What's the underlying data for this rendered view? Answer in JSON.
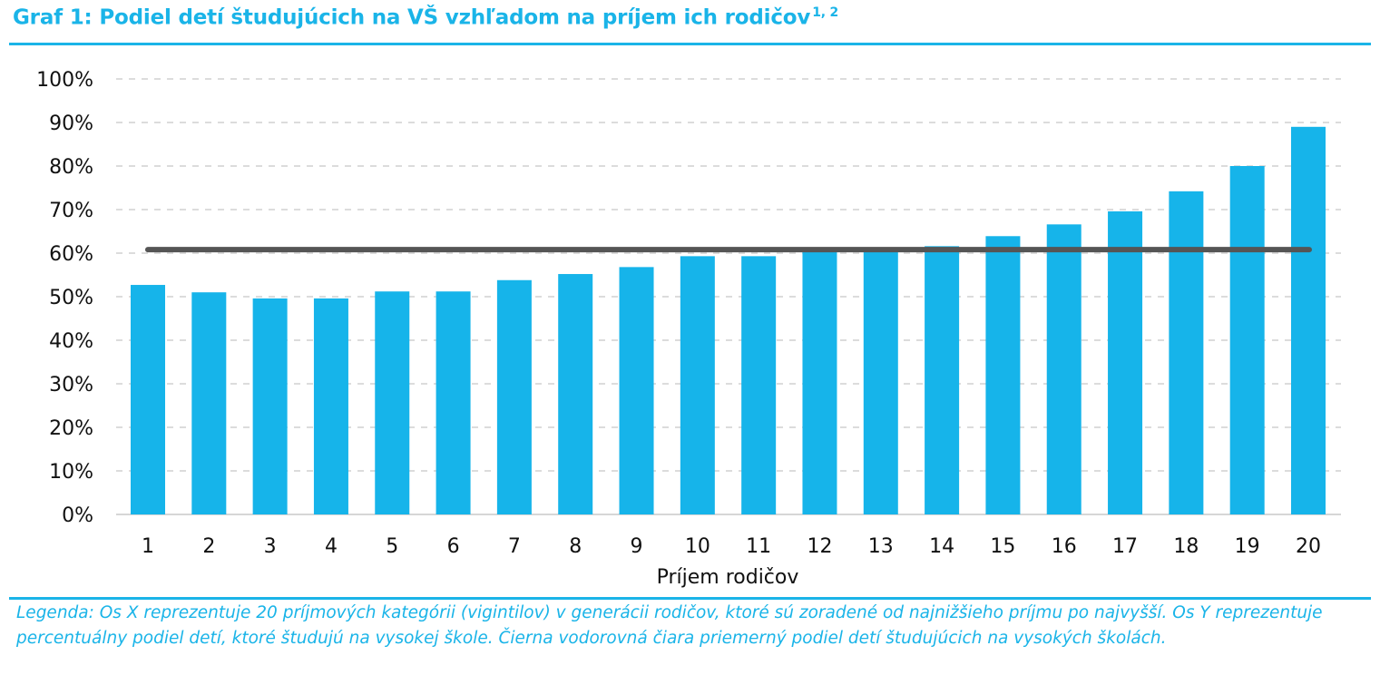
{
  "header": {
    "title": "Graf 1: Podiel detí študujúcich na VŠ vzhľadom na príjem ich rodičov",
    "footnote_marks": "1, 2"
  },
  "colors": {
    "accent": "#1ab4e8",
    "bar": "#16b4ea",
    "average_line": "#555555"
  },
  "chart_data": {
    "type": "bar",
    "title": "Graf 1: Podiel detí študujúcich na VŠ vzhľadom na príjem ich rodičov",
    "xlabel": "Príjem rodičov",
    "ylabel": "",
    "categories": [
      "1",
      "2",
      "3",
      "4",
      "5",
      "6",
      "7",
      "8",
      "9",
      "10",
      "11",
      "12",
      "13",
      "14",
      "15",
      "16",
      "17",
      "18",
      "19",
      "20"
    ],
    "values": [
      52.7,
      51.0,
      49.6,
      49.6,
      51.2,
      51.2,
      53.8,
      55.2,
      56.8,
      59.3,
      59.3,
      60.9,
      60.9,
      61.6,
      63.9,
      66.6,
      69.6,
      74.2,
      80.0,
      89.0
    ],
    "ylim": [
      0,
      100
    ],
    "yticks": [
      "0%",
      "10%",
      "20%",
      "30%",
      "40%",
      "50%",
      "60%",
      "70%",
      "80%",
      "90%",
      "100%"
    ],
    "grid": true,
    "average_line": 60.8
  },
  "legend": {
    "text": "Legenda: Os X reprezentuje 20 príjmových kategórii (vigintilov) v generácii rodičov, ktoré sú zoradené od najnižšieho príjmu po najvyšší. Os Y reprezentuje percentuálny podiel detí, ktoré študujú na vysokej škole. Čierna vodorovná čiara priemerný podiel detí študujúcich na vysokých školách."
  }
}
